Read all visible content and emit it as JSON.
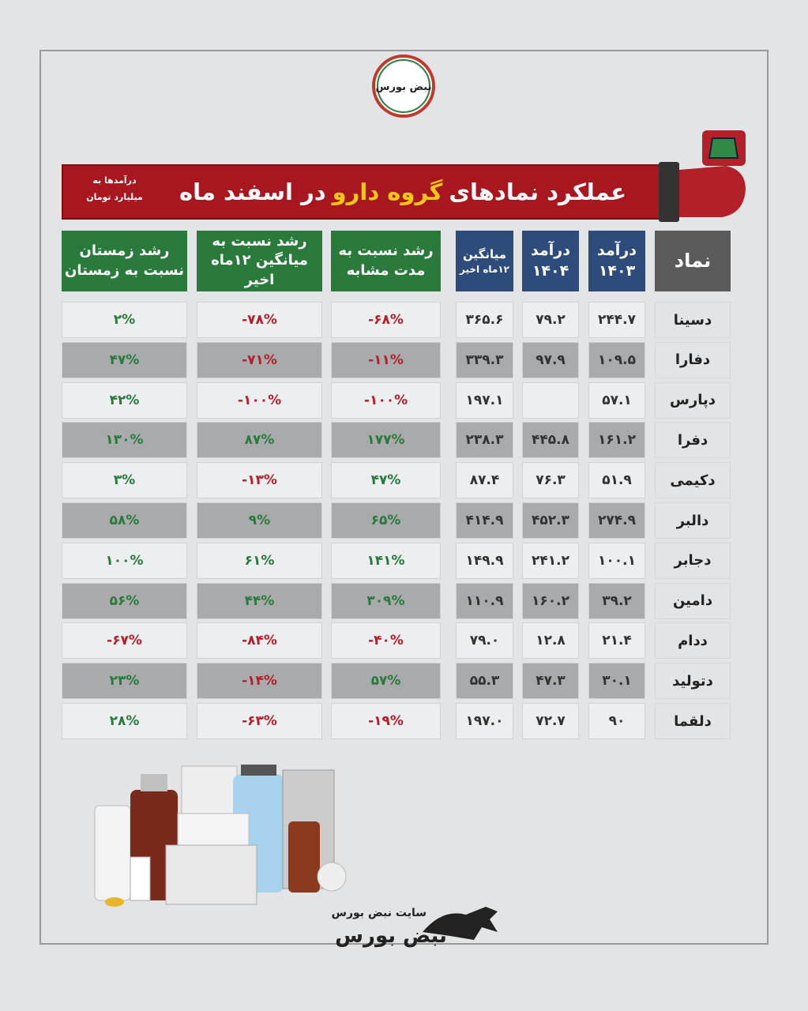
{
  "header": {
    "logo": "نبض بورس",
    "title_start": "عملکرد نمادهای",
    "title_highlight": "گروه دارو",
    "title_end": "در اسفند ماه",
    "note": [
      "درآمدها به",
      "میلیارد تومان"
    ]
  },
  "table": {
    "columns": [
      [
        "نماد"
      ],
      [
        "درآمد",
        "۱۴۰۳"
      ],
      [
        "درآمد",
        "۱۴۰۴"
      ],
      [
        "میانگین",
        "۱۲ماه اخیر"
      ],
      [
        "رشد نسبت به",
        "مدت مشابه"
      ],
      [
        "رشد نسبت به",
        "میانگین ۱۲ماه اخیر"
      ],
      [
        "رشد  زمستان",
        "نسبت به زمستان"
      ]
    ],
    "rows": [
      [
        "دسینا",
        "۲۴۴.۷",
        "۷۹.۲",
        "۳۶۵.۶",
        "-۶۸%",
        "-۷۸%",
        "۲%"
      ],
      [
        "دفارا",
        "۱۰۹.۵",
        "۹۷.۹",
        "۳۳۹.۳",
        "-۱۱%",
        "-۷۱%",
        "۴۷%"
      ],
      [
        "دپارس",
        "۵۷.۱",
        null,
        "۱۹۷.۱",
        "-۱۰۰%",
        "-۱۰۰%",
        "۴۲%"
      ],
      [
        "دفرا",
        "۱۶۱.۲",
        "۴۴۵.۸",
        "۲۳۸.۳",
        "۱۷۷%",
        "۸۷%",
        "۱۳۰%"
      ],
      [
        "دکیمی",
        "۵۱.۹",
        "۷۶.۳",
        "۸۷.۴",
        "۴۷%",
        "-۱۳%",
        "۳%"
      ],
      [
        "دالبر",
        "۲۷۴.۹",
        "۴۵۲.۳",
        "۴۱۴.۹",
        "۶۵%",
        "۹%",
        "۵۸%"
      ],
      [
        "دجابر",
        "۱۰۰.۱",
        "۲۴۱.۲",
        "۱۴۹.۹",
        "۱۴۱%",
        "۶۱%",
        "۱۰۰%"
      ],
      [
        "دامین",
        "۳۹.۲",
        "۱۶۰.۲",
        "۱۱۰.۹",
        "۳۰۹%",
        "۴۴%",
        "۵۶%"
      ],
      [
        "ددام",
        "۲۱.۴",
        "۱۲.۸",
        "۷۹.۰",
        "-۴۰%",
        "-۸۴%",
        "-۶۷%"
      ],
      [
        "دتولید",
        "۳۰.۱",
        "۴۷.۳",
        "۵۵.۳",
        "۵۷%",
        "-۱۴%",
        "۲۳%"
      ],
      [
        "دلقما",
        "۹۰",
        "۷۲.۷",
        "۱۹۷.۰",
        "-۱۹%",
        "-۶۳%",
        "۲۸%"
      ]
    ]
  },
  "footer": {
    "site": "سایت نبض بورس",
    "logo": "نبض بورس"
  }
}
